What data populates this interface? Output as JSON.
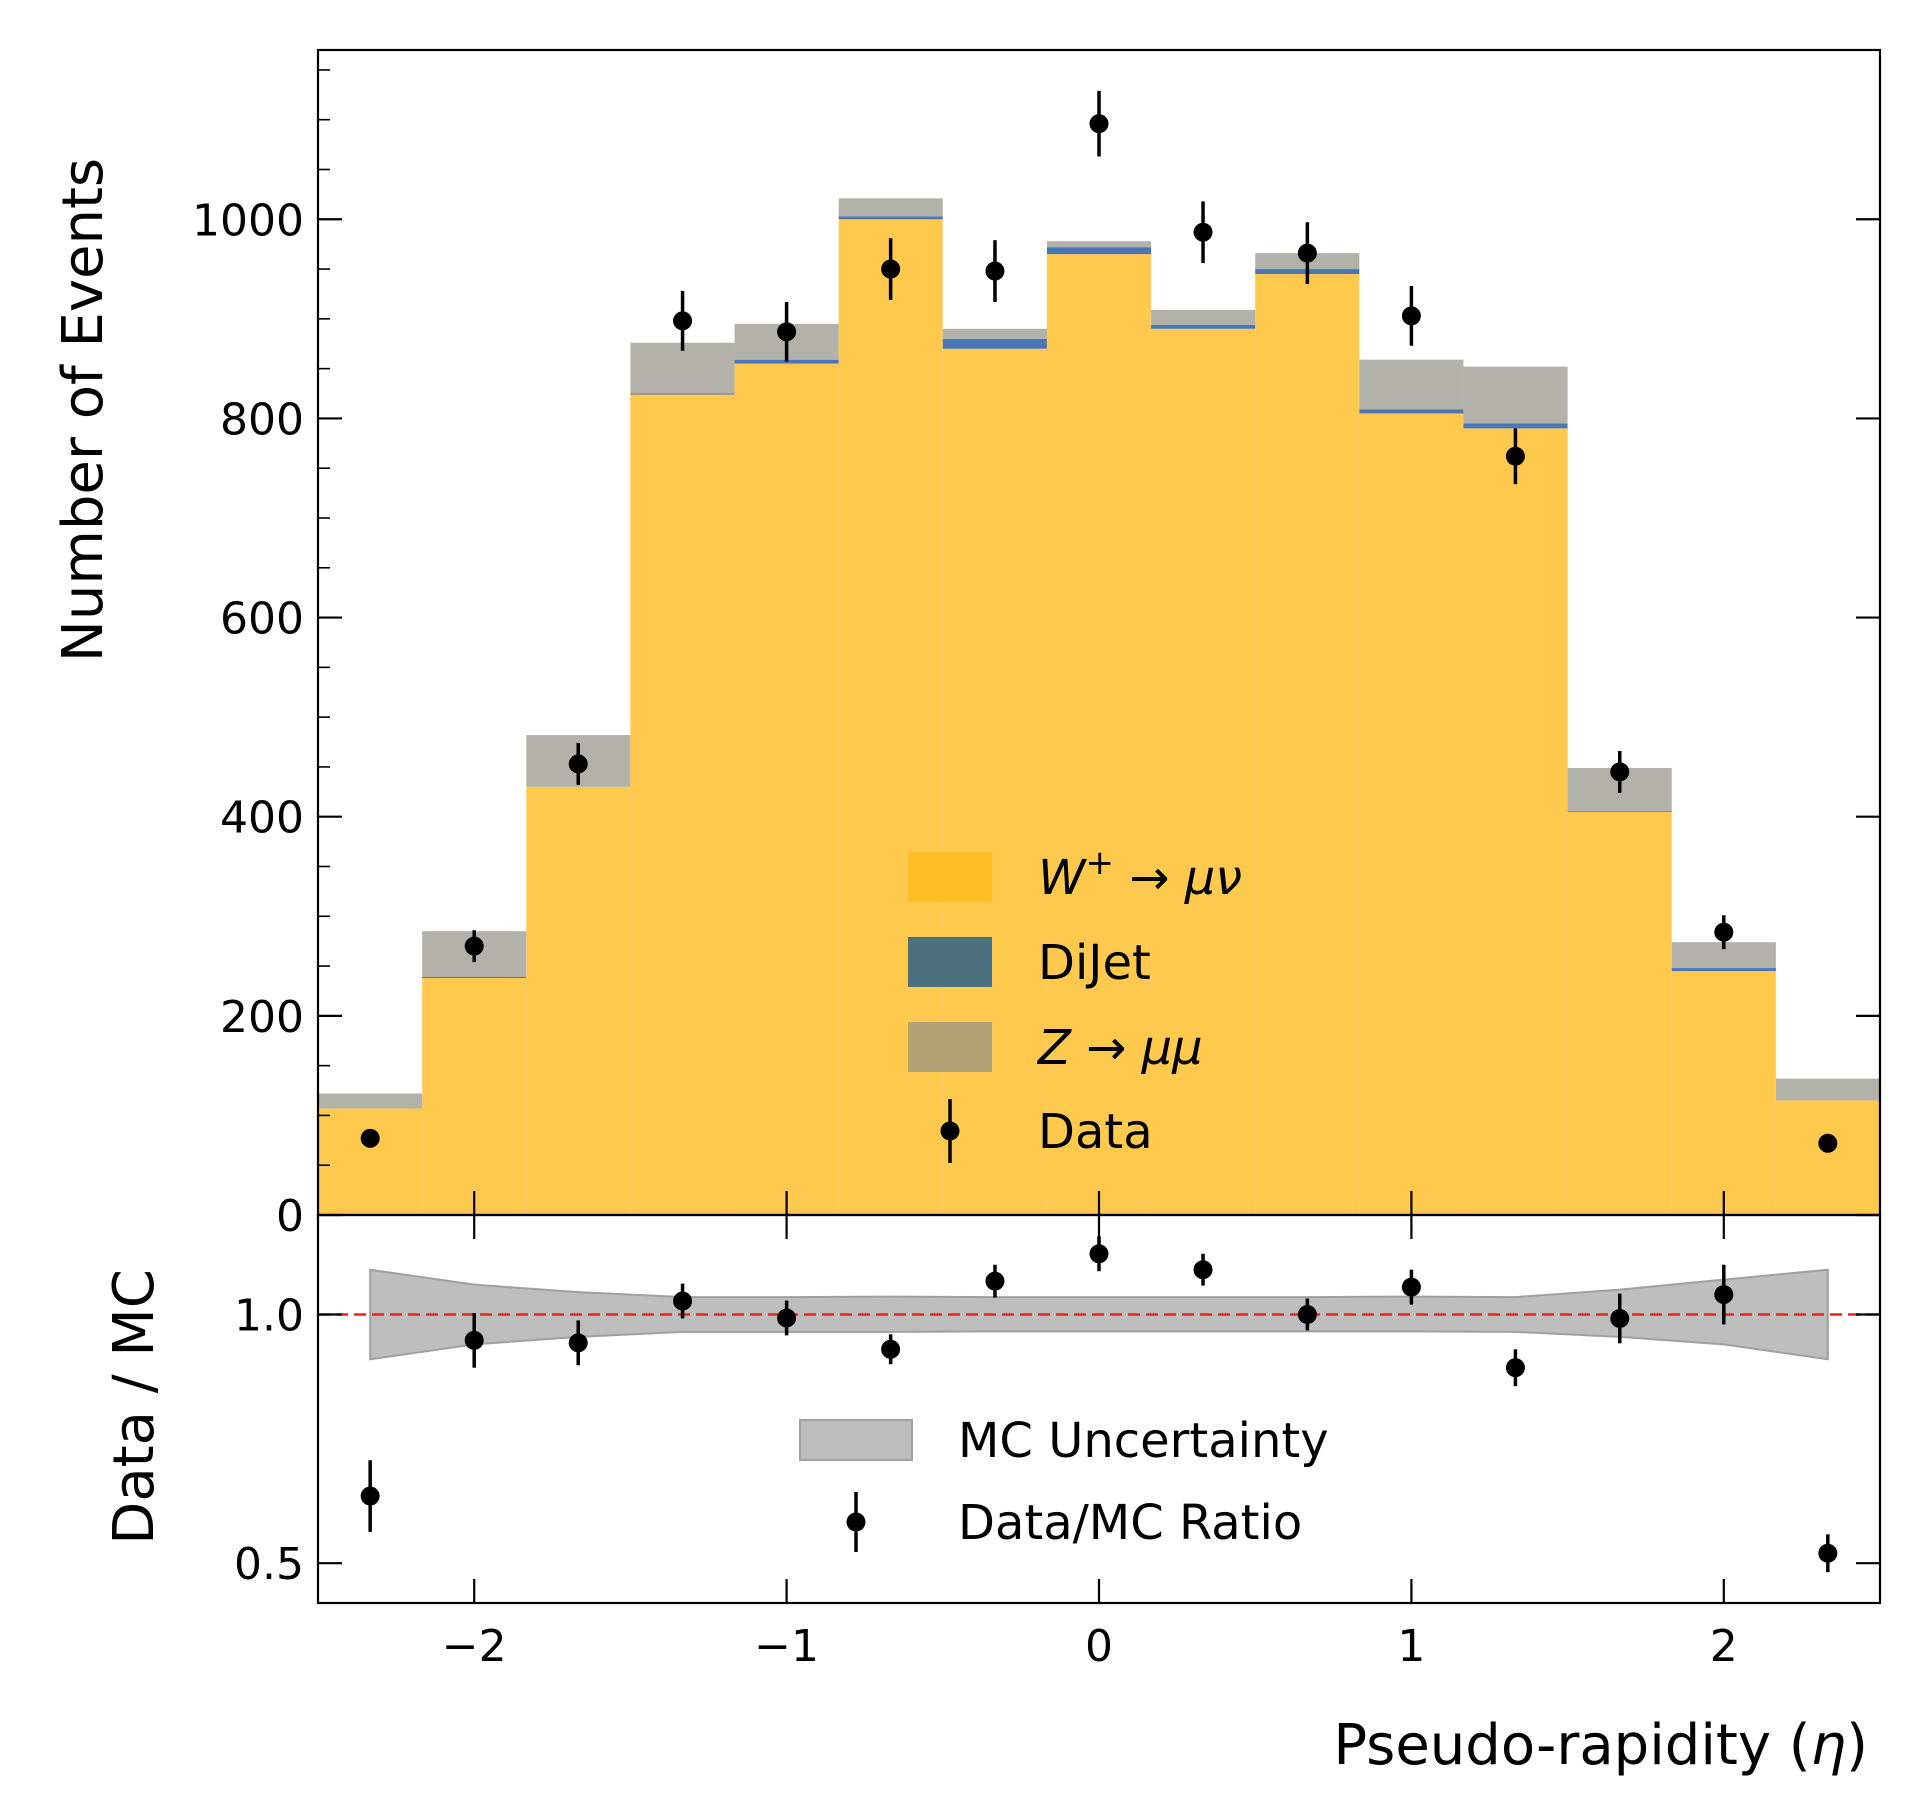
{
  "chart_data": [
    {
      "type": "bar",
      "subtype": "stacked-histogram",
      "title": "",
      "xlabel": "",
      "ylabel": "Number of Events",
      "xlim": [
        -2.5,
        2.5
      ],
      "ylim": [
        0,
        1170
      ],
      "ytick_labels": [
        "0",
        "200",
        "400",
        "600",
        "800",
        "1000"
      ],
      "ytick_values": [
        0,
        200,
        400,
        600,
        800,
        1000
      ],
      "bin_edges": [
        -2.5,
        -2.1667,
        -1.8333,
        -1.5,
        -1.1667,
        -0.8333,
        -0.5,
        -0.1667,
        0.1667,
        0.5,
        0.8333,
        1.1667,
        1.5,
        1.8333,
        2.1667,
        2.5
      ],
      "series": [
        {
          "name": "W+ → μν",
          "color": "#FFC94D",
          "values": [
            107,
            238,
            430,
            824,
            855,
            1000,
            870,
            965,
            890,
            945,
            805,
            790,
            405,
            245,
            115
          ]
        },
        {
          "name": "DiJet",
          "color": "#4A76B8",
          "values": [
            0,
            1,
            0,
            1,
            4,
            3,
            10,
            7,
            4,
            5,
            4,
            5,
            1,
            3,
            0
          ]
        },
        {
          "name": "Z → μμ",
          "color": "#B3B2AA",
          "values": [
            15,
            46,
            52,
            51,
            36,
            18,
            10,
            6,
            15,
            16,
            50,
            57,
            43,
            26,
            22
          ]
        }
      ],
      "data_points": {
        "name": "Data",
        "x": [
          -2.333,
          -2.0,
          -1.667,
          -1.333,
          -1.0,
          -0.667,
          -0.333,
          0.0,
          0.333,
          0.667,
          1.0,
          1.333,
          1.667,
          2.0,
          2.333
        ],
        "y": [
          77,
          270,
          453,
          898,
          887,
          950,
          948,
          1096,
          987,
          966,
          903,
          762,
          445,
          284,
          72
        ],
        "yerr": [
          9,
          16,
          21,
          30,
          30,
          31,
          31,
          33,
          31,
          31,
          30,
          28,
          21,
          17,
          8
        ]
      },
      "legend": {
        "position": "lower-center",
        "entries": [
          {
            "label": "W",
            "sup": "+",
            "rest": " → μν",
            "italic_parts": true,
            "color": "#FFBE26",
            "kind": "patch"
          },
          {
            "label": "DiJet",
            "color": "#4B7080",
            "kind": "patch"
          },
          {
            "label": "Z",
            "rest": " → μμ",
            "italic_parts": true,
            "color": "#B2A274",
            "kind": "patch"
          },
          {
            "label": "Data",
            "kind": "errorbar"
          }
        ]
      }
    },
    {
      "type": "scatter",
      "subtype": "ratio",
      "title": "",
      "xlabel": "Pseudo-rapidity (η)",
      "xlabel_main": "Pseudo-rapidity (",
      "xlabel_symbol": "η",
      "xlabel_close": ")",
      "ylabel": "Data / MC",
      "xlim": [
        -2.5,
        2.5
      ],
      "ylim": [
        0.42,
        1.2
      ],
      "xtick_labels": [
        "−2",
        "−1",
        "0",
        "1",
        "2"
      ],
      "xtick_values": [
        -2,
        -1,
        0,
        1,
        2
      ],
      "ytick_labels": [
        "0.5",
        "1.0"
      ],
      "ytick_values": [
        0.5,
        1.0
      ],
      "reference_line": {
        "y": 1.0,
        "color": "#E8231F",
        "style": "dashed"
      },
      "uncertainty_band": {
        "name": "MC Uncertainty",
        "x": [
          -2.333,
          -2.0,
          -1.667,
          -1.333,
          -1.0,
          -0.667,
          -0.333,
          0.0,
          0.333,
          0.667,
          1.0,
          1.333,
          1.667,
          2.0,
          2.333
        ],
        "low": [
          0.91,
          0.94,
          0.955,
          0.965,
          0.965,
          0.965,
          0.966,
          0.966,
          0.966,
          0.966,
          0.966,
          0.965,
          0.955,
          0.94,
          0.91
        ],
        "high": [
          1.09,
          1.06,
          1.045,
          1.035,
          1.035,
          1.036,
          1.035,
          1.035,
          1.035,
          1.035,
          1.036,
          1.035,
          1.05,
          1.07,
          1.09
        ]
      },
      "data_points": {
        "name": "Data/MC Ratio",
        "x": [
          -2.333,
          -2.0,
          -1.667,
          -1.333,
          -1.0,
          -0.667,
          -0.333,
          0.0,
          0.333,
          0.667,
          1.0,
          1.333,
          1.667,
          2.0,
          2.333
        ],
        "y": [
          0.635,
          0.948,
          0.943,
          1.027,
          0.993,
          0.93,
          1.067,
          1.122,
          1.09,
          1.0,
          1.055,
          0.893,
          0.992,
          1.04,
          0.52
        ],
        "yerr": [
          0.072,
          0.055,
          0.045,
          0.035,
          0.035,
          0.03,
          0.033,
          0.035,
          0.032,
          0.032,
          0.035,
          0.037,
          0.05,
          0.06,
          0.038
        ]
      },
      "legend": {
        "position": "lower-center",
        "entries": [
          {
            "label": "MC Uncertainty",
            "color": "#BEBEBE",
            "kind": "patch"
          },
          {
            "label": "Data/MC Ratio",
            "kind": "errorbar"
          }
        ]
      }
    }
  ]
}
